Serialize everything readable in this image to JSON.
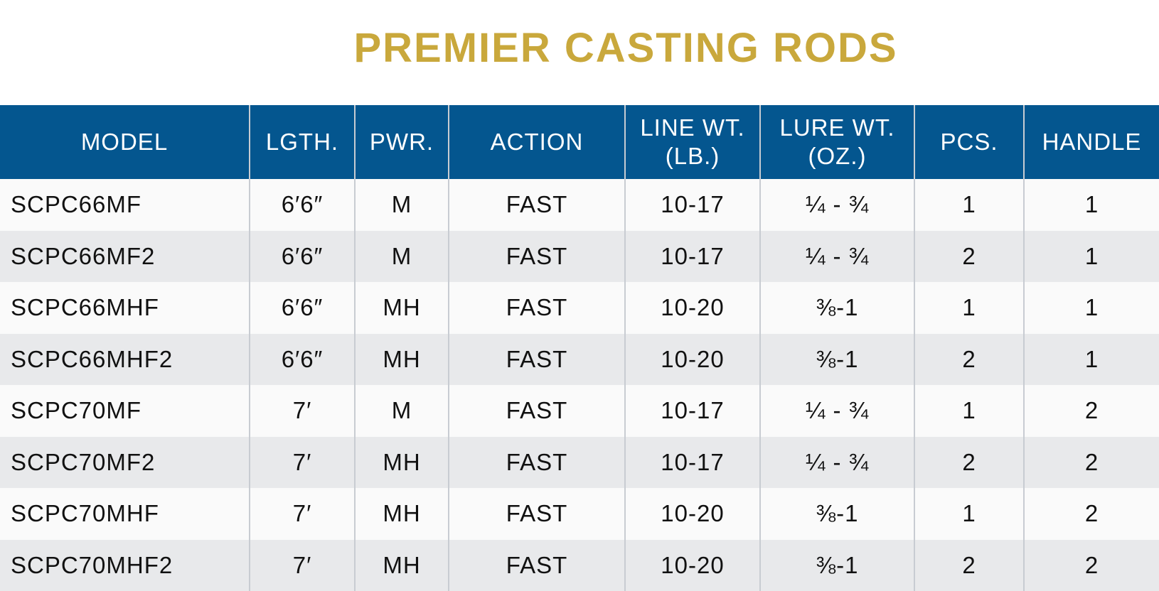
{
  "title": "PREMIER CASTING RODS",
  "table": {
    "header": [
      "MODEL",
      "LGTH.",
      "PWR.",
      "ACTION",
      "LINE WT.\n(LB.)",
      "LURE WT.\n(OZ.)",
      "PCS.",
      "HANDLE"
    ],
    "rows": [
      [
        "SCPC66MF",
        "6′6″",
        "M",
        "FAST",
        "10-17",
        "¼ - ¾",
        "1",
        "1"
      ],
      [
        "SCPC66MF2",
        "6′6″",
        "M",
        "FAST",
        "10-17",
        "¼ - ¾",
        "2",
        "1"
      ],
      [
        "SCPC66MHF",
        "6′6″",
        "MH",
        "FAST",
        "10-20",
        "⅜-1",
        "1",
        "1"
      ],
      [
        "SCPC66MHF2",
        "6′6″",
        "MH",
        "FAST",
        "10-20",
        "⅜-1",
        "2",
        "1"
      ],
      [
        "SCPC70MF",
        "7′",
        "M",
        "FAST",
        "10-17",
        "¼ - ¾",
        "1",
        "2"
      ],
      [
        "SCPC70MF2",
        "7′",
        "MH",
        "FAST",
        "10-17",
        "¼ - ¾",
        "2",
        "2"
      ],
      [
        "SCPC70MHF",
        "7′",
        "MH",
        "FAST",
        "10-20",
        "⅜-1",
        "1",
        "2"
      ],
      [
        "SCPC70MHF2",
        "7′",
        "MH",
        "FAST",
        "10-20",
        "⅜-1",
        "2",
        "2"
      ]
    ]
  }
}
